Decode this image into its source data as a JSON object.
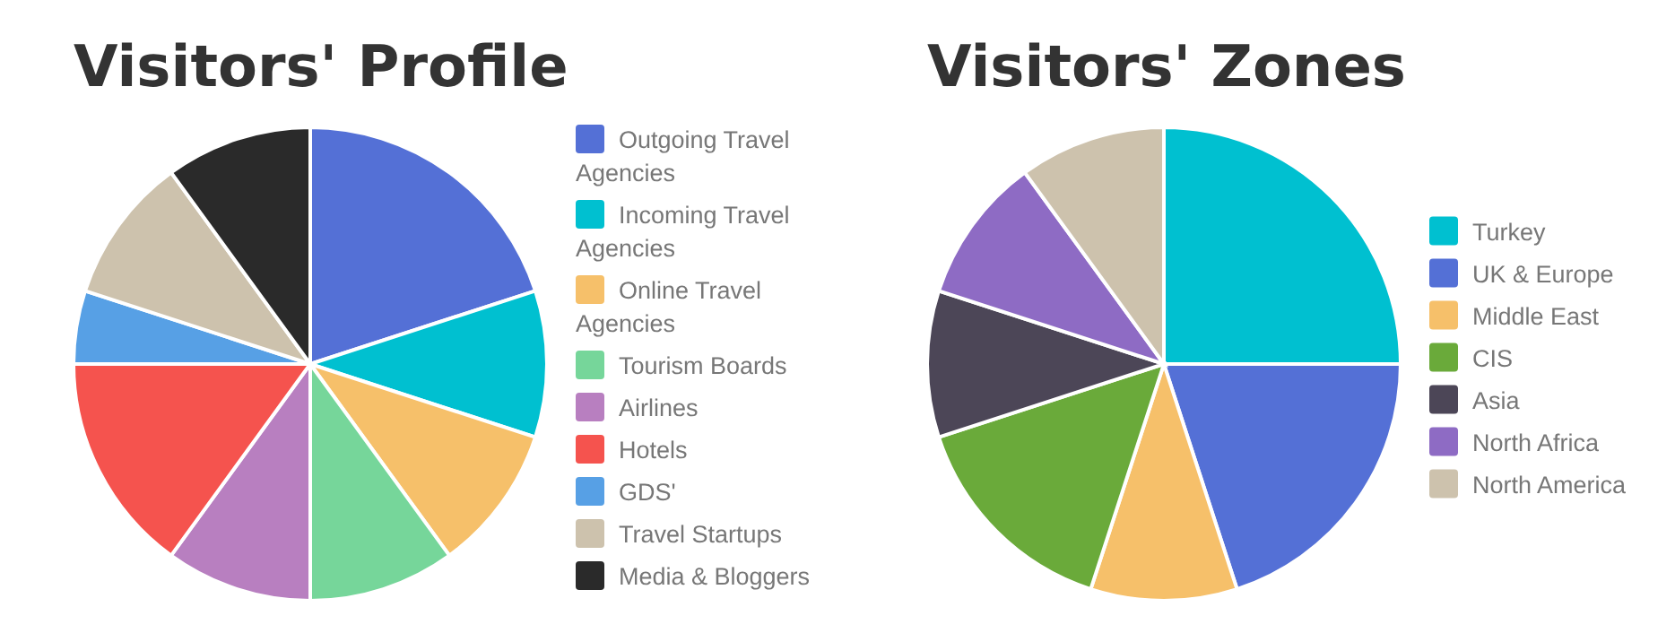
{
  "chart_data": [
    {
      "type": "pie",
      "title": "Visitors' Profile",
      "legend": "right",
      "categories": [
        "Outgoing Travel Agencies",
        "Incoming Travel Agencies",
        "Online Travel Agencies",
        "Tourism Boards",
        "Airlines",
        "Hotels",
        "GDS'",
        "Travel Startups",
        "Media & Bloggers"
      ],
      "values": [
        20,
        10,
        10,
        10,
        10,
        15,
        5,
        10,
        10
      ],
      "colors": [
        "#5470d6",
        "#00c0d0",
        "#f6c06a",
        "#76d69a",
        "#b87fc0",
        "#f5534e",
        "#57a0e5",
        "#cdc2ad",
        "#2a2a2a"
      ]
    },
    {
      "type": "pie",
      "title": "Visitors' Zones",
      "legend": "right",
      "categories": [
        "Turkey",
        "UK & Europe",
        "Middle East",
        "CIS",
        "Asia",
        "North Africa",
        "North America"
      ],
      "values": [
        25,
        20,
        10,
        15,
        10,
        10,
        10
      ],
      "colors": [
        "#00c0d0",
        "#5470d6",
        "#f6c06a",
        "#6aaa3a",
        "#4c4657",
        "#8e6bc4",
        "#cdc2ad"
      ]
    }
  ]
}
